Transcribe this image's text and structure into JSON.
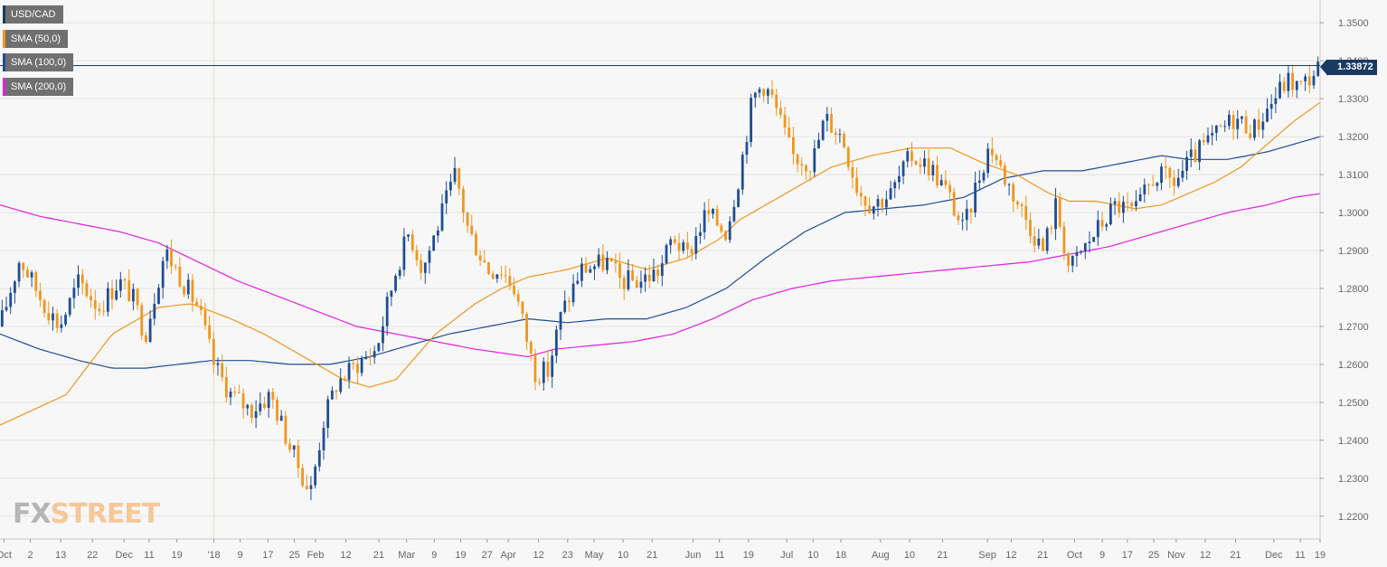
{
  "legend": [
    {
      "label": "USD/CAD",
      "color": "#1b3a61"
    },
    {
      "label": "SMA (50,0)",
      "color": "#f0961e"
    },
    {
      "label": "SMA (100,0)",
      "color": "#1f4e96"
    },
    {
      "label": "SMA (200,0)",
      "color": "#e31fe3"
    }
  ],
  "price_tag": "1.33872",
  "watermark": {
    "fx": "FX",
    "street": "STREET"
  },
  "colors": {
    "up": "#1f4e96",
    "down": "#f0961e",
    "sma50": "#f0961e",
    "sma100": "#1f4e96",
    "sma200": "#e31fe3",
    "grid": "#e3e3e3"
  },
  "chart_data": {
    "type": "candlestick",
    "title": "USD/CAD",
    "ylim": [
      1.214,
      1.356
    ],
    "y_ticks": [
      "1.3500",
      "1.3400",
      "1.3300",
      "1.3200",
      "1.3100",
      "1.3000",
      "1.2900",
      "1.2800",
      "1.2700",
      "1.2600",
      "1.2500",
      "1.2400",
      "1.2300",
      "1.2200"
    ],
    "x_ticks": [
      "Oct",
      "2",
      "13",
      "22",
      "Dec",
      "11",
      "19",
      "'18",
      "9",
      "17",
      "25",
      "Feb",
      "12",
      "21",
      "Mar",
      "9",
      "19",
      "27",
      "Apr",
      "12",
      "23",
      "May",
      "10",
      "21",
      "Jun",
      "11",
      "19",
      "Jul",
      "10",
      "18",
      "Aug",
      "10",
      "21",
      "Sep",
      "12",
      "21",
      "Oct",
      "9",
      "17",
      "25",
      "Nov",
      "12",
      "21",
      "Dec",
      "11",
      "19"
    ],
    "x_tick_fractions": [
      0.003,
      0.023,
      0.046,
      0.07,
      0.094,
      0.113,
      0.134,
      0.162,
      0.182,
      0.203,
      0.223,
      0.239,
      0.262,
      0.287,
      0.308,
      0.329,
      0.349,
      0.369,
      0.385,
      0.408,
      0.43,
      0.45,
      0.472,
      0.494,
      0.525,
      0.545,
      0.567,
      0.596,
      0.616,
      0.637,
      0.667,
      0.689,
      0.714,
      0.748,
      0.766,
      0.79,
      0.814,
      0.835,
      0.854,
      0.874,
      0.891,
      0.913,
      0.936,
      0.965,
      0.985,
      1.0
    ],
    "current_level": 1.33872,
    "anchors": [
      [
        0,
        1.27
      ],
      [
        0.015,
        1.288
      ],
      [
        0.03,
        1.278
      ],
      [
        0.045,
        1.27
      ],
      [
        0.06,
        1.282
      ],
      [
        0.075,
        1.275
      ],
      [
        0.09,
        1.282
      ],
      [
        0.1,
        1.278
      ],
      [
        0.11,
        1.268
      ],
      [
        0.125,
        1.29
      ],
      [
        0.135,
        1.284
      ],
      [
        0.15,
        1.275
      ],
      [
        0.162,
        1.26
      ],
      [
        0.175,
        1.252
      ],
      [
        0.19,
        1.248
      ],
      [
        0.205,
        1.252
      ],
      [
        0.22,
        1.238
      ],
      [
        0.235,
        1.226
      ],
      [
        0.245,
        1.245
      ],
      [
        0.255,
        1.255
      ],
      [
        0.27,
        1.26
      ],
      [
        0.285,
        1.264
      ],
      [
        0.3,
        1.285
      ],
      [
        0.31,
        1.295
      ],
      [
        0.32,
        1.285
      ],
      [
        0.33,
        1.295
      ],
      [
        0.345,
        1.31
      ],
      [
        0.355,
        1.295
      ],
      [
        0.37,
        1.285
      ],
      [
        0.38,
        1.285
      ],
      [
        0.39,
        1.28
      ],
      [
        0.405,
        1.258
      ],
      [
        0.415,
        1.258
      ],
      [
        0.425,
        1.273
      ],
      [
        0.44,
        1.285
      ],
      [
        0.46,
        1.287
      ],
      [
        0.47,
        1.282
      ],
      [
        0.485,
        1.282
      ],
      [
        0.5,
        1.285
      ],
      [
        0.51,
        1.294
      ],
      [
        0.52,
        1.288
      ],
      [
        0.535,
        1.3
      ],
      [
        0.55,
        1.295
      ],
      [
        0.56,
        1.31
      ],
      [
        0.57,
        1.33
      ],
      [
        0.578,
        1.334
      ],
      [
        0.585,
        1.33
      ],
      [
        0.6,
        1.315
      ],
      [
        0.615,
        1.313
      ],
      [
        0.625,
        1.325
      ],
      [
        0.638,
        1.32
      ],
      [
        0.65,
        1.306
      ],
      [
        0.66,
        1.302
      ],
      [
        0.675,
        1.305
      ],
      [
        0.69,
        1.315
      ],
      [
        0.705,
        1.312
      ],
      [
        0.718,
        1.305
      ],
      [
        0.73,
        1.295
      ],
      [
        0.74,
        1.308
      ],
      [
        0.75,
        1.318
      ],
      [
        0.76,
        1.31
      ],
      [
        0.775,
        1.3
      ],
      [
        0.79,
        1.29
      ],
      [
        0.8,
        1.302
      ],
      [
        0.81,
        1.285
      ],
      [
        0.82,
        1.29
      ],
      [
        0.83,
        1.295
      ],
      [
        0.845,
        1.302
      ],
      [
        0.86,
        1.3
      ],
      [
        0.875,
        1.31
      ],
      [
        0.89,
        1.308
      ],
      [
        0.905,
        1.315
      ],
      [
        0.92,
        1.32
      ],
      [
        0.935,
        1.325
      ],
      [
        0.95,
        1.322
      ],
      [
        0.965,
        1.33
      ],
      [
        0.975,
        1.335
      ],
      [
        0.985,
        1.333
      ],
      [
        1.0,
        1.3387
      ]
    ],
    "sma": {
      "sma50": [
        [
          0,
          1.244
        ],
        [
          0.05,
          1.252
        ],
        [
          0.085,
          1.268
        ],
        [
          0.12,
          1.275
        ],
        [
          0.145,
          1.276
        ],
        [
          0.175,
          1.272
        ],
        [
          0.2,
          1.268
        ],
        [
          0.23,
          1.262
        ],
        [
          0.26,
          1.256
        ],
        [
          0.28,
          1.254
        ],
        [
          0.3,
          1.256
        ],
        [
          0.33,
          1.268
        ],
        [
          0.36,
          1.276
        ],
        [
          0.38,
          1.28
        ],
        [
          0.4,
          1.283
        ],
        [
          0.43,
          1.285
        ],
        [
          0.46,
          1.288
        ],
        [
          0.49,
          1.285
        ],
        [
          0.52,
          1.288
        ],
        [
          0.545,
          1.293
        ],
        [
          0.56,
          1.298
        ],
        [
          0.59,
          1.304
        ],
        [
          0.63,
          1.312
        ],
        [
          0.66,
          1.315
        ],
        [
          0.69,
          1.317
        ],
        [
          0.72,
          1.317
        ],
        [
          0.745,
          1.313
        ],
        [
          0.77,
          1.31
        ],
        [
          0.795,
          1.305
        ],
        [
          0.81,
          1.303
        ],
        [
          0.83,
          1.303
        ],
        [
          0.86,
          1.301
        ],
        [
          0.88,
          1.302
        ],
        [
          0.9,
          1.305
        ],
        [
          0.92,
          1.308
        ],
        [
          0.94,
          1.312
        ],
        [
          0.96,
          1.318
        ],
        [
          0.98,
          1.324
        ],
        [
          1.0,
          1.329
        ]
      ],
      "sma100": [
        [
          0,
          1.268
        ],
        [
          0.03,
          1.264
        ],
        [
          0.06,
          1.261
        ],
        [
          0.085,
          1.259
        ],
        [
          0.11,
          1.259
        ],
        [
          0.135,
          1.26
        ],
        [
          0.16,
          1.261
        ],
        [
          0.19,
          1.261
        ],
        [
          0.22,
          1.26
        ],
        [
          0.25,
          1.26
        ],
        [
          0.28,
          1.262
        ],
        [
          0.31,
          1.265
        ],
        [
          0.34,
          1.268
        ],
        [
          0.37,
          1.27
        ],
        [
          0.4,
          1.272
        ],
        [
          0.43,
          1.271
        ],
        [
          0.46,
          1.272
        ],
        [
          0.49,
          1.272
        ],
        [
          0.52,
          1.275
        ],
        [
          0.55,
          1.28
        ],
        [
          0.58,
          1.288
        ],
        [
          0.61,
          1.295
        ],
        [
          0.64,
          1.3
        ],
        [
          0.67,
          1.301
        ],
        [
          0.7,
          1.302
        ],
        [
          0.73,
          1.304
        ],
        [
          0.76,
          1.309
        ],
        [
          0.79,
          1.311
        ],
        [
          0.82,
          1.311
        ],
        [
          0.85,
          1.313
        ],
        [
          0.88,
          1.315
        ],
        [
          0.9,
          1.314
        ],
        [
          0.93,
          1.314
        ],
        [
          0.96,
          1.316
        ],
        [
          0.98,
          1.318
        ],
        [
          1.0,
          1.32
        ]
      ],
      "sma200": [
        [
          0,
          1.302
        ],
        [
          0.03,
          1.299
        ],
        [
          0.06,
          1.297
        ],
        [
          0.09,
          1.295
        ],
        [
          0.12,
          1.292
        ],
        [
          0.15,
          1.287
        ],
        [
          0.18,
          1.282
        ],
        [
          0.21,
          1.278
        ],
        [
          0.24,
          1.274
        ],
        [
          0.27,
          1.27
        ],
        [
          0.3,
          1.268
        ],
        [
          0.33,
          1.266
        ],
        [
          0.36,
          1.264
        ],
        [
          0.38,
          1.263
        ],
        [
          0.4,
          1.262
        ],
        [
          0.42,
          1.264
        ],
        [
          0.45,
          1.265
        ],
        [
          0.48,
          1.266
        ],
        [
          0.51,
          1.268
        ],
        [
          0.54,
          1.272
        ],
        [
          0.57,
          1.277
        ],
        [
          0.6,
          1.28
        ],
        [
          0.63,
          1.282
        ],
        [
          0.66,
          1.283
        ],
        [
          0.69,
          1.284
        ],
        [
          0.72,
          1.285
        ],
        [
          0.75,
          1.286
        ],
        [
          0.78,
          1.287
        ],
        [
          0.81,
          1.289
        ],
        [
          0.84,
          1.291
        ],
        [
          0.87,
          1.294
        ],
        [
          0.9,
          1.297
        ],
        [
          0.93,
          1.3
        ],
        [
          0.96,
          1.302
        ],
        [
          0.98,
          1.304
        ],
        [
          1.0,
          1.305
        ]
      ]
    },
    "grid": true,
    "legend_placement": "top-left"
  }
}
